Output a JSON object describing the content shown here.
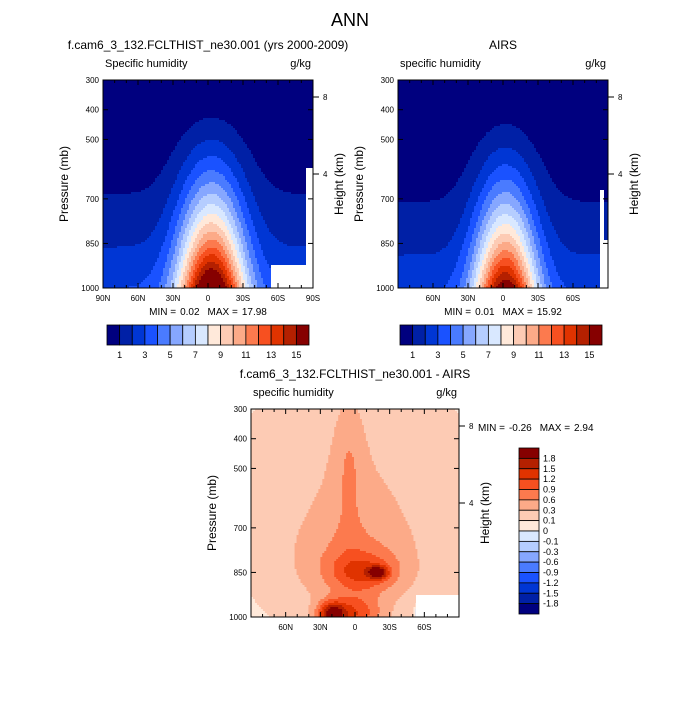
{
  "main_title": "ANN",
  "chart_data": [
    {
      "type": "contour",
      "title": "f.cam6_3_132.FCLTHIST_ne30.001 (yrs 2000-2009)",
      "left_string": "Specific humidity",
      "units": "g/kg",
      "ylabel": "Pressure (mb)",
      "ylabel_right": "Height (km)",
      "yticks": [
        "300",
        "400",
        "500",
        "700",
        "850",
        "1000"
      ],
      "yticks_right": [
        "8",
        "4"
      ],
      "xticks": [
        "90N",
        "60N",
        "30N",
        "0",
        "30S",
        "60S",
        "90S"
      ],
      "ylim": [
        300,
        1000
      ],
      "xlim": [
        "90N",
        "90S"
      ],
      "stats": {
        "min_label": "MIN =",
        "min": "0.02",
        "max_label": "MAX =",
        "max": "17.98"
      },
      "colorbar": {
        "orientation": "horizontal",
        "levels": [
          1,
          2,
          3,
          4,
          5,
          6,
          7,
          8,
          9,
          10,
          11,
          12,
          13,
          14,
          15
        ],
        "labels": [
          "1",
          "3",
          "5",
          "7",
          "9",
          "11",
          "13",
          "15"
        ],
        "colors": [
          "#00007f",
          "#0020a6",
          "#0036d4",
          "#1a52ff",
          "#4a7bff",
          "#86a7ff",
          "#b5cdff",
          "#d9e8ff",
          "#ffe9da",
          "#fdcbb4",
          "#fcaa88",
          "#fc7a4e",
          "#f75020",
          "#e03300",
          "#b42000",
          "#860000"
        ]
      }
    },
    {
      "type": "contour",
      "title": "AIRS",
      "left_string": "specific humidity",
      "units": "g/kg",
      "ylabel": "Pressure (mb)",
      "ylabel_right": "Height (km)",
      "yticks": [
        "300",
        "400",
        "500",
        "700",
        "850",
        "1000"
      ],
      "yticks_right": [
        "8",
        "4"
      ],
      "xticks": [
        "60N",
        "30N",
        "0",
        "30S",
        "60S"
      ],
      "ylim": [
        300,
        1000
      ],
      "stats": {
        "min_label": "MIN =",
        "min": "0.01",
        "max_label": "MAX =",
        "max": "15.92"
      },
      "colorbar": {
        "orientation": "horizontal",
        "levels": [
          1,
          2,
          3,
          4,
          5,
          6,
          7,
          8,
          9,
          10,
          11,
          12,
          13,
          14,
          15
        ],
        "labels": [
          "1",
          "3",
          "5",
          "7",
          "9",
          "11",
          "13",
          "15"
        ],
        "colors": [
          "#00007f",
          "#0020a6",
          "#0036d4",
          "#1a52ff",
          "#4a7bff",
          "#86a7ff",
          "#b5cdff",
          "#d9e8ff",
          "#ffe9da",
          "#fdcbb4",
          "#fcaa88",
          "#fc7a4e",
          "#f75020",
          "#e03300",
          "#b42000",
          "#860000"
        ]
      }
    },
    {
      "type": "contour",
      "title": "f.cam6_3_132.FCLTHIST_ne30.001 - AIRS",
      "left_string": "specific humidity",
      "units": "g/kg",
      "ylabel": "Pressure (mb)",
      "ylabel_right": "Height (km)",
      "yticks": [
        "300",
        "400",
        "500",
        "700",
        "850",
        "1000"
      ],
      "yticks_right": [
        "8",
        "4"
      ],
      "xticks": [
        "60N",
        "30N",
        "0",
        "30S",
        "60S"
      ],
      "ylim": [
        300,
        1000
      ],
      "stats": {
        "min_label": "MIN =",
        "min": "-0.26",
        "max_label": "MAX =",
        "max": "2.94"
      },
      "colorbar": {
        "orientation": "vertical",
        "levels": [
          -1.8,
          -1.5,
          -1.2,
          -0.9,
          -0.6,
          -0.3,
          -0.1,
          0,
          0.1,
          0.3,
          0.6,
          0.9,
          1.2,
          1.5,
          1.8
        ],
        "labels": [
          "1.8",
          "1.5",
          "1.2",
          "0.9",
          "0.6",
          "0.3",
          "0.1",
          "0",
          "-0.1",
          "-0.3",
          "-0.6",
          "-0.9",
          "-1.2",
          "-1.5",
          "-1.8"
        ],
        "colors": [
          "#00007f",
          "#0020a6",
          "#0036d4",
          "#1a52ff",
          "#4a7bff",
          "#86a7ff",
          "#b5cdff",
          "#d9e8ff",
          "#ffe9da",
          "#fdcbb4",
          "#fcaa88",
          "#fc7a4e",
          "#f75020",
          "#e03300",
          "#b42000",
          "#860000"
        ]
      }
    }
  ]
}
